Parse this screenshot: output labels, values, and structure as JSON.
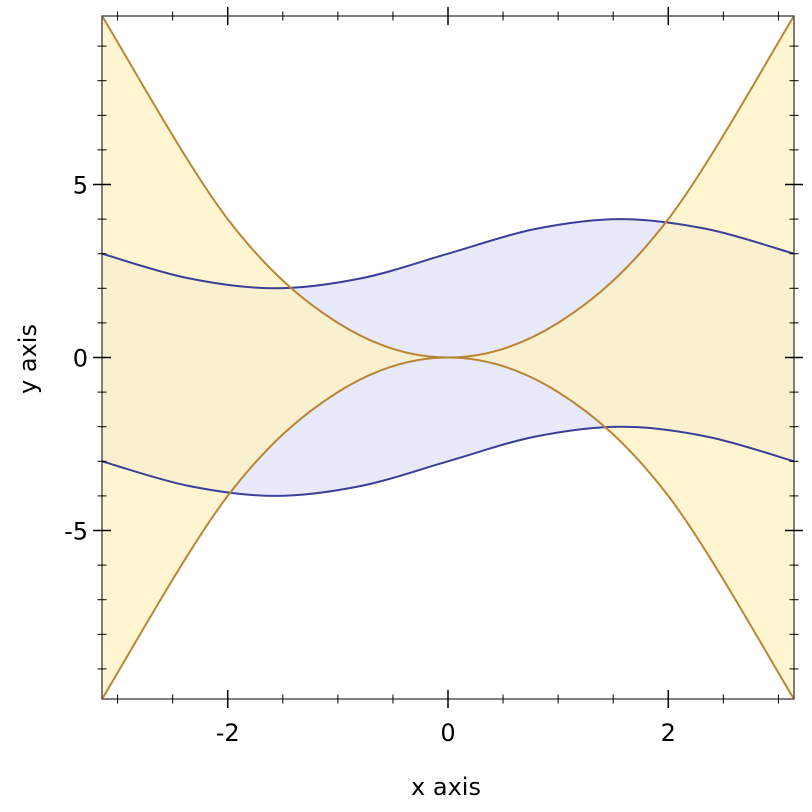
{
  "chart_data": {
    "type": "area",
    "title": "",
    "xlabel": "x axis",
    "ylabel": "y axis",
    "xlim": [
      -3.14159,
      3.14159
    ],
    "ylim": [
      -9.8696,
      9.8696
    ],
    "x_major_ticks": [
      -2,
      0,
      2
    ],
    "x_tick_labels": [
      "-2",
      "0",
      "2"
    ],
    "x_minor_step": 0.5,
    "y_major_ticks": [
      -5,
      0,
      5
    ],
    "y_tick_labels": [
      "-5",
      "0",
      "5"
    ],
    "y_minor_step": 1,
    "grid": false,
    "series": [
      {
        "kind": "interval",
        "fill": "#e8eafb",
        "line": "#3b3f97",
        "upper": {
          "x": [
            -3.1416,
            -2.3562,
            -1.5708,
            -0.7854,
            0,
            0.7854,
            1.5708,
            2.3562,
            3.1416
          ],
          "y": [
            3.0,
            2.29,
            2.0,
            2.29,
            3.0,
            3.71,
            4.0,
            3.71,
            3.0
          ]
        },
        "lower": {
          "x": [
            -3.1416,
            -2.3562,
            -1.5708,
            -0.7854,
            0,
            0.7854,
            1.5708,
            2.3562,
            3.1416
          ],
          "y": [
            -3.0,
            -3.71,
            -4.0,
            -3.71,
            -3.0,
            -2.29,
            -2.0,
            -2.29,
            -3.0
          ]
        }
      },
      {
        "kind": "interval",
        "fill": "#fff1c2",
        "fill_opacity": 0.75,
        "line": "#b98536",
        "upper": {
          "x": [
            -3.1416,
            -2,
            -1,
            0,
            1,
            2,
            3.1416
          ],
          "y": [
            9.87,
            4.0,
            1.0,
            0.0,
            1.0,
            4.0,
            9.87
          ]
        },
        "lower": {
          "x": [
            -3.1416,
            -2,
            -1,
            0,
            1,
            2,
            3.1416
          ],
          "y": [
            -9.87,
            -4.0,
            -1.0,
            0.0,
            -1.0,
            -4.0,
            -9.87
          ]
        }
      }
    ]
  }
}
